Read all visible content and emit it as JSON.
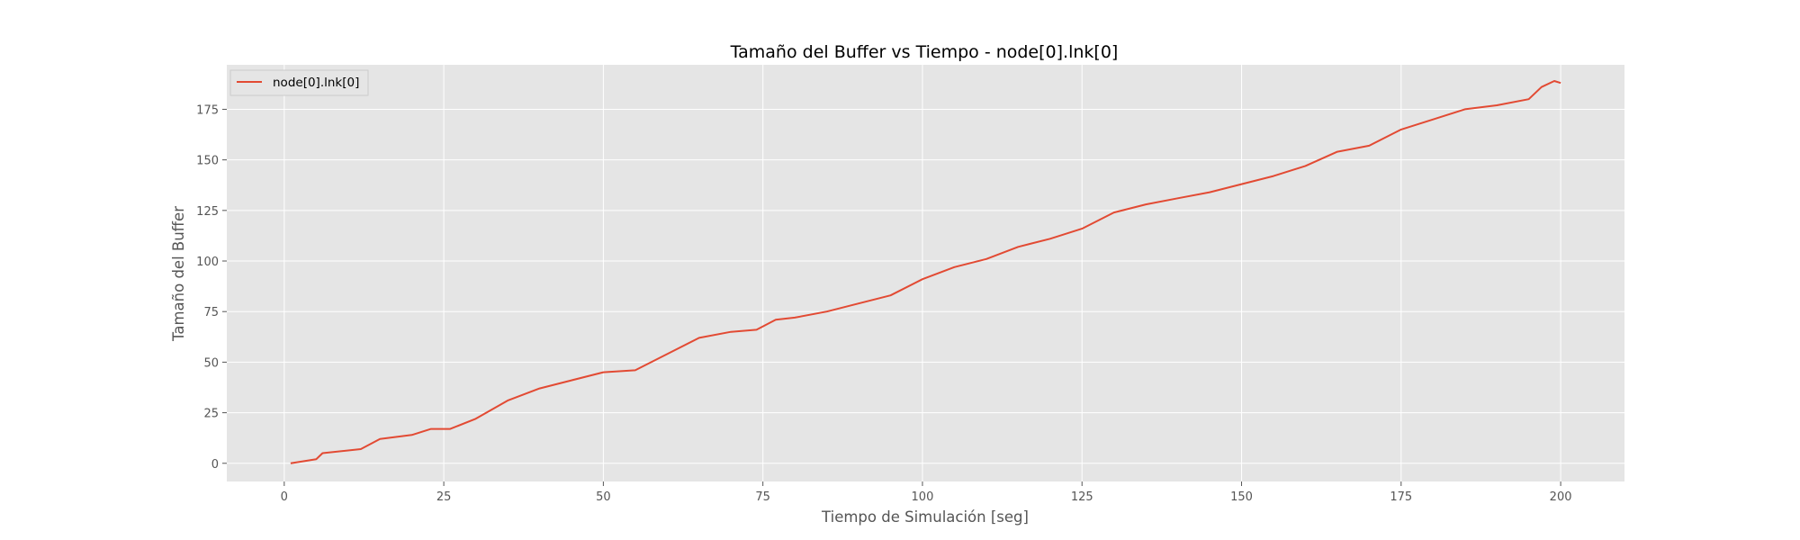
{
  "chart_data": {
    "type": "line",
    "title": "Tamaño del Buffer vs Tiempo - node[0].lnk[0]",
    "xlabel": "Tiempo de Simulación [seg]",
    "ylabel": "Tamaño del Buffer",
    "xlim": [
      -9,
      210
    ],
    "ylim": [
      -9,
      197
    ],
    "x_ticks": [
      0,
      25,
      50,
      75,
      100,
      125,
      150,
      175,
      200
    ],
    "y_ticks": [
      0,
      25,
      50,
      75,
      100,
      125,
      150,
      175
    ],
    "grid": true,
    "legend_position": "top-left",
    "colors": {
      "series": "#e24a33",
      "plot_bg": "#e5e5e5",
      "grid": "#ffffff"
    },
    "series": [
      {
        "name": "node[0].lnk[0]",
        "x": [
          1,
          5,
          6,
          12,
          15,
          20,
          23,
          26,
          30,
          35,
          40,
          45,
          50,
          55,
          60,
          65,
          70,
          74,
          77,
          80,
          85,
          90,
          95,
          100,
          105,
          110,
          115,
          120,
          125,
          130,
          135,
          140,
          145,
          150,
          155,
          160,
          165,
          170,
          175,
          180,
          185,
          190,
          195,
          197,
          199,
          200
        ],
        "y": [
          0,
          2,
          5,
          7,
          12,
          14,
          17,
          17,
          22,
          31,
          37,
          41,
          45,
          46,
          54,
          62,
          65,
          66,
          71,
          72,
          75,
          79,
          83,
          91,
          97,
          101,
          107,
          111,
          116,
          124,
          128,
          131,
          134,
          138,
          142,
          147,
          154,
          157,
          165,
          170,
          175,
          177,
          180,
          186,
          189,
          188
        ]
      }
    ]
  }
}
